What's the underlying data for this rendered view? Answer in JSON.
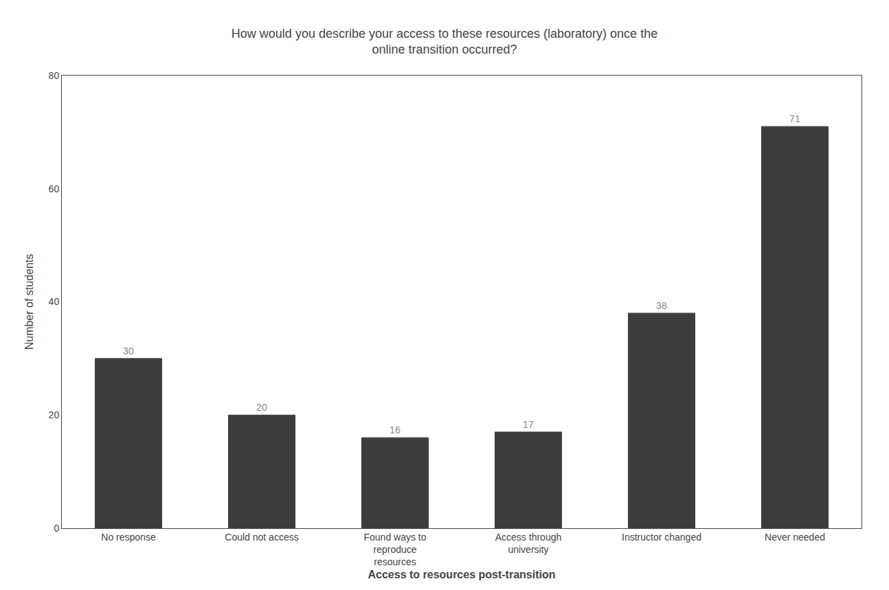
{
  "chart_data": {
    "type": "bar",
    "title": "How would you describe your access to these resources (laboratory) once the\nonline transition occurred?",
    "xlabel": "Access to resources post-transition",
    "ylabel": "Number of students",
    "categories": [
      "No response",
      "Could not access",
      "Found ways to\nreproduce\nresources",
      "Access through\nuniversity",
      "Instructor changed",
      "Never needed"
    ],
    "values": [
      30,
      20,
      16,
      17,
      38,
      71
    ],
    "color": "#3d3d3d",
    "ylim": [
      0,
      80
    ],
    "yticks": [
      0,
      20,
      40,
      60,
      80
    ],
    "grid": false,
    "data_labels": true
  }
}
